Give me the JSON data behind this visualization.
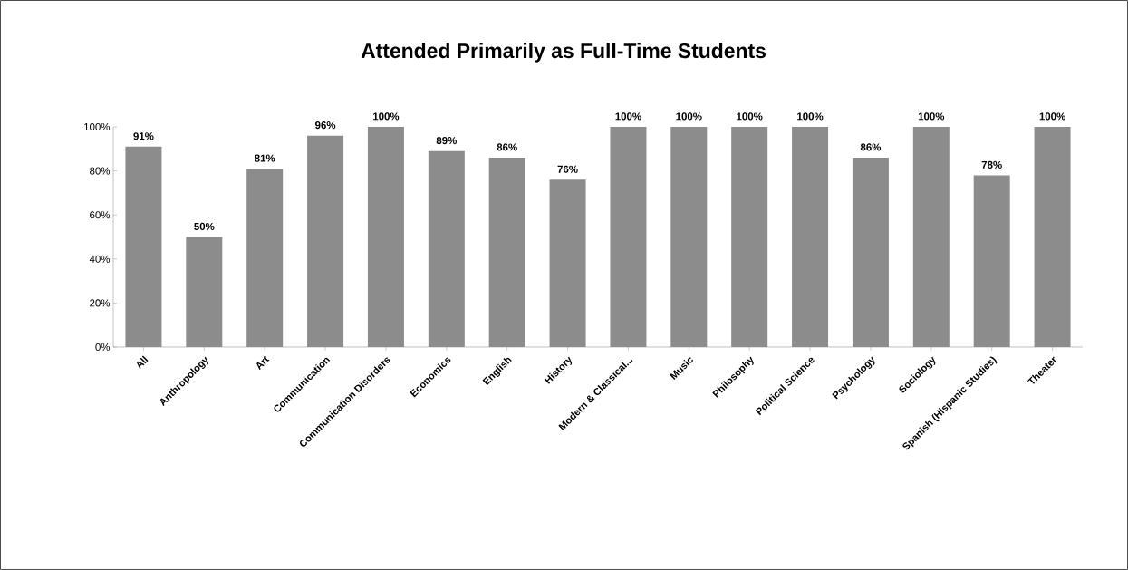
{
  "chart_data": {
    "type": "bar",
    "title": "Attended Primarily as Full-Time Students",
    "categories": [
      "All",
      "Anthropology",
      "Art",
      "Communication",
      "Communication Disorders",
      "Economics",
      "English",
      "History",
      "Modern & Classical...",
      "Music",
      "Philosophy",
      "Political Science",
      "Psychology",
      "Sociology",
      "Spanish (Hispanic Studies)",
      "Theater"
    ],
    "values": [
      91,
      50,
      81,
      96,
      100,
      89,
      86,
      76,
      100,
      100,
      100,
      100,
      86,
      100,
      78,
      100
    ],
    "value_labels": [
      "91%",
      "50%",
      "81%",
      "96%",
      "100%",
      "89%",
      "86%",
      "76%",
      "100%",
      "100%",
      "100%",
      "100%",
      "86%",
      "100%",
      "78%",
      "100%"
    ],
    "color": "#8c8c8c",
    "ylim": [
      0,
      100
    ],
    "yticks": [
      {
        "value": 0,
        "label": "0%"
      },
      {
        "value": 20,
        "label": "20%"
      },
      {
        "value": 40,
        "label": "40%"
      },
      {
        "value": 60,
        "label": "60%"
      },
      {
        "value": 80,
        "label": "80%"
      },
      {
        "value": 100,
        "label": "100%"
      }
    ],
    "grid": false
  }
}
